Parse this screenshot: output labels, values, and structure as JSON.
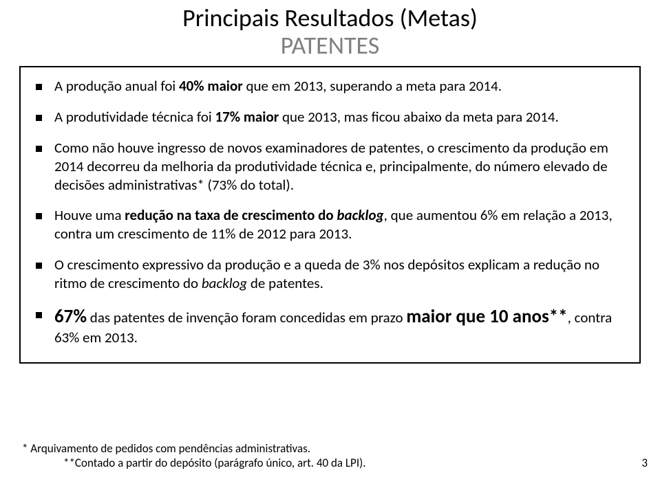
{
  "title": {
    "line1": "Principais Resultados (Metas)",
    "line2": "PATENTES"
  },
  "bullets": [
    {
      "pre": "A produção anual foi ",
      "emph": "40% maior",
      "post": " que em 2013, superando a meta para 2014."
    },
    {
      "pre": "A produtividade técnica foi ",
      "emph": "17% maior",
      "post": " que 2013, mas ficou abaixo da meta para 2014."
    },
    {
      "full": "Como não houve ingresso de novos examinadores de patentes, o crescimento da produção em 2014 decorreu da melhoria da produtividade técnica e, principalmente, do número elevado de decisões administrativas* (73% do total)."
    },
    {
      "pre": "Houve uma ",
      "emph": "redução na taxa de crescimento do ",
      "ital": "backlog",
      "post": ", que  aumentou 6% em relação a 2013, contra um crescimento de 11% de 2012 para 2013."
    },
    {
      "pre": "O crescimento expressivo da produção e a queda de 3% nos depósitos explicam a redução no ritmo de crescimento do ",
      "ital2": "backlog",
      "post2": " de patentes."
    },
    {
      "big1": "67%",
      "mid": " das patentes de invenção foram concedidas em prazo ",
      "big2": "maior que 10 anos**",
      "tail": ", contra 63% em 2013."
    }
  ],
  "footnotes": {
    "left": "* Arquivamento de pedidos com pendências administrativas.",
    "right": "**Contado a partir do depósito (parágrafo único, art. 40 da LPI)."
  },
  "page": "3"
}
